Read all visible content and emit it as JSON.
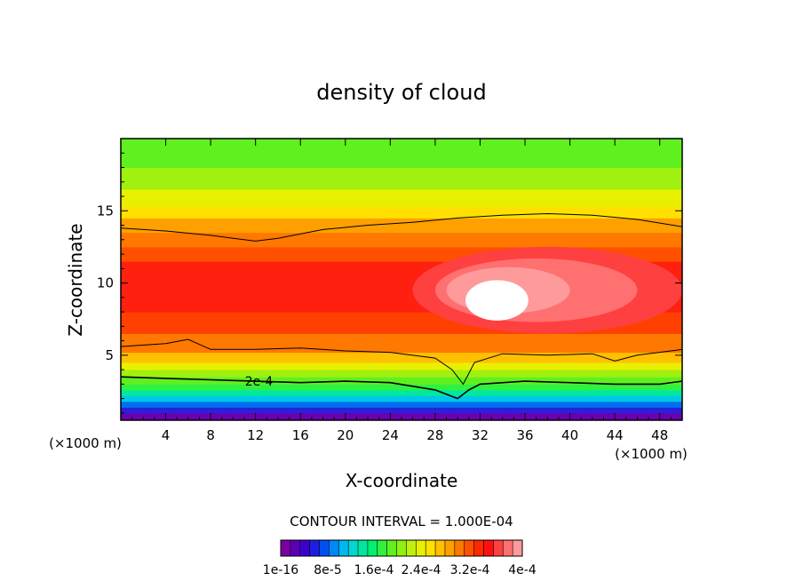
{
  "chart_data": {
    "type": "heatmap",
    "title": "density of cloud",
    "xlabel": "X-coordinate",
    "ylabel": "Z-coordinate",
    "x_unit": "(×1000 m)",
    "x_unit_right": "(×1000 m)",
    "xlim": [
      0,
      50
    ],
    "ylim": [
      0.5,
      20
    ],
    "x_ticks": [
      4,
      8,
      12,
      16,
      20,
      24,
      28,
      32,
      36,
      40,
      44,
      48
    ],
    "x_tick_labels": [
      "4",
      "8",
      "12",
      "16",
      "20",
      "24",
      "28",
      "32",
      "36",
      "40",
      "44",
      "48"
    ],
    "y_ticks": [
      5,
      10,
      15
    ],
    "y_tick_labels": [
      "5",
      "10",
      "15"
    ],
    "contour_interval_text": "CONTOUR INTERVAL = 1.000E-04",
    "contour_label": "2e-4",
    "contour_label_at": [
      12.3,
      3.2
    ],
    "colorbar": {
      "colors": [
        "#7a00a0",
        "#5a00b8",
        "#3c00cc",
        "#1e1ee0",
        "#0050f0",
        "#0088f8",
        "#00b8f0",
        "#00d8d0",
        "#00e8a0",
        "#00f070",
        "#30f040",
        "#60f020",
        "#90f010",
        "#c0f010",
        "#e8f000",
        "#ffe000",
        "#ffc000",
        "#ffa000",
        "#ff7800",
        "#ff5000",
        "#ff2800",
        "#ff1010",
        "#ff4040",
        "#ff7070",
        "#ff9a9a"
      ],
      "labels": [
        "1e-16",
        "8e-5",
        "1.6e-4",
        "2.4e-4",
        "3.2e-4",
        "4e-4"
      ]
    },
    "bands_by_height": [
      {
        "z_top": 1.0,
        "color": "#6a00b0"
      },
      {
        "z_top": 1.4,
        "color": "#2a20d8"
      },
      {
        "z_top": 1.8,
        "color": "#0070f0"
      },
      {
        "z_top": 2.2,
        "color": "#00c8e8"
      },
      {
        "z_top": 2.6,
        "color": "#00e8a0"
      },
      {
        "z_top": 3.0,
        "color": "#30f040"
      },
      {
        "z_top": 3.5,
        "color": "#60f020"
      },
      {
        "z_top": 4.0,
        "color": "#a0f010"
      },
      {
        "z_top": 4.5,
        "color": "#e8f000"
      },
      {
        "z_top": 5.2,
        "color": "#ffc000"
      },
      {
        "z_top": 6.5,
        "color": "#ff7800"
      },
      {
        "z_top": 8.0,
        "color": "#ff4000"
      },
      {
        "z_top": 11.5,
        "color": "#ff2010"
      },
      {
        "z_top": 12.5,
        "color": "#ff5000"
      },
      {
        "z_top": 13.5,
        "color": "#ff7800"
      },
      {
        "z_top": 14.5,
        "color": "#ffa000"
      },
      {
        "z_top": 15.3,
        "color": "#ffe000"
      },
      {
        "z_top": 16.5,
        "color": "#e8f000"
      },
      {
        "z_top": 18.0,
        "color": "#a0f010"
      },
      {
        "z_top": 20.0,
        "color": "#60f020"
      }
    ],
    "cloud_core": [
      {
        "cx": 38.0,
        "cz": 9.5,
        "rx": 12.0,
        "rz": 3.0,
        "color": "#ff4040"
      },
      {
        "cx": 37.0,
        "cz": 9.5,
        "rx": 9.0,
        "rz": 2.2,
        "color": "#ff7070"
      },
      {
        "cx": 34.5,
        "cz": 9.5,
        "rx": 5.5,
        "rz": 1.6,
        "color": "#ff9a9a"
      },
      {
        "cx": 33.5,
        "cz": 8.8,
        "rx": 2.8,
        "rz": 1.4,
        "color": "#ffffff"
      }
    ],
    "contours": [
      {
        "x": [
          0,
          4,
          8,
          10,
          12,
          14,
          18,
          22,
          26,
          30,
          34,
          38,
          42,
          46,
          50
        ],
        "z": [
          13.8,
          13.6,
          13.3,
          13.1,
          12.9,
          13.1,
          13.7,
          14.0,
          14.2,
          14.5,
          14.7,
          14.8,
          14.7,
          14.4,
          13.9
        ]
      },
      {
        "x": [
          0,
          4,
          6,
          8,
          12,
          16,
          20,
          24,
          28,
          29.5,
          30.5,
          31.5,
          34,
          38,
          42,
          44,
          46,
          50
        ],
        "z": [
          5.6,
          5.8,
          6.1,
          5.4,
          5.4,
          5.5,
          5.3,
          5.2,
          4.8,
          4.0,
          3.0,
          4.5,
          5.1,
          5.0,
          5.1,
          4.6,
          5.0,
          5.4
        ]
      },
      {
        "x": [
          0,
          4,
          8,
          12,
          16,
          20,
          24,
          28,
          30,
          31,
          32,
          36,
          40,
          44,
          48,
          50
        ],
        "z": [
          3.5,
          3.4,
          3.3,
          3.2,
          3.1,
          3.2,
          3.1,
          2.6,
          2.0,
          2.6,
          3.0,
          3.2,
          3.1,
          3.0,
          3.0,
          3.2
        ]
      }
    ]
  }
}
